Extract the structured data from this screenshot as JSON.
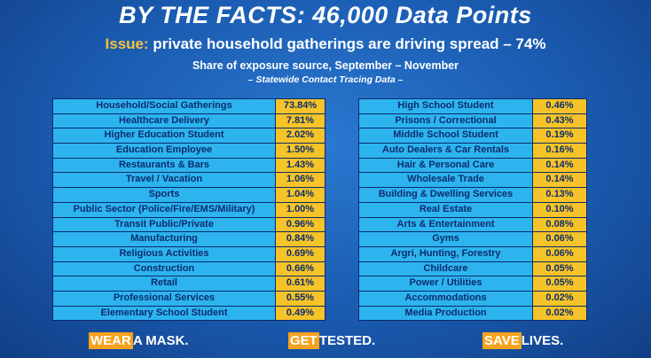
{
  "header": {
    "title": "BY THE FACTS: 46,000 Data Points",
    "issue_label": "Issue:",
    "issue_text": "private household gatherings are driving spread – 74%",
    "subtitle": "Share of exposure source, September – November",
    "note": "– Statewide Contact Tracing Data –"
  },
  "tables": [
    {
      "rows": [
        [
          "Household/Social Gatherings",
          "73.84%"
        ],
        [
          "Healthcare Delivery",
          "7.81%"
        ],
        [
          "Higher Education Student",
          "2.02%"
        ],
        [
          "Education Employee",
          "1.50%"
        ],
        [
          "Restaurants & Bars",
          "1.43%"
        ],
        [
          "Travel / Vacation",
          "1.06%"
        ],
        [
          "Sports",
          "1.04%"
        ],
        [
          "Public Sector (Police/Fire/EMS/Military)",
          "1.00%"
        ],
        [
          "Transit Public/Private",
          "0.96%"
        ],
        [
          "Manufacturing",
          "0.84%"
        ],
        [
          "Religious Activities",
          "0.69%"
        ],
        [
          "Construction",
          "0.66%"
        ],
        [
          "Retail",
          "0.61%"
        ],
        [
          "Professional Services",
          "0.55%"
        ],
        [
          "Elementary School Student",
          "0.49%"
        ]
      ]
    },
    {
      "rows": [
        [
          "High School Student",
          "0.46%"
        ],
        [
          "Prisons / Correctional",
          "0.43%"
        ],
        [
          "Middle School Student",
          "0.19%"
        ],
        [
          "Auto Dealers & Car Rentals",
          "0.16%"
        ],
        [
          "Hair & Personal Care",
          "0.14%"
        ],
        [
          "Wholesale Trade",
          "0.14%"
        ],
        [
          "Building & Dwelling Services",
          "0.13%"
        ],
        [
          "Real Estate",
          "0.10%"
        ],
        [
          "Arts & Entertainment",
          "0.08%"
        ],
        [
          "Gyms",
          "0.06%"
        ],
        [
          "Argri, Hunting, Forestry",
          "0.06%"
        ],
        [
          "Childcare",
          "0.05%"
        ],
        [
          "Power / Utilities",
          "0.05%"
        ],
        [
          "Accommodations",
          "0.02%"
        ],
        [
          "Media Production",
          "0.02%"
        ]
      ]
    }
  ],
  "footer": [
    {
      "highlight": "WEAR",
      "text": "A MASK."
    },
    {
      "highlight": "GET",
      "text": "TESTED."
    },
    {
      "highlight": "SAVE",
      "text": "LIVES."
    }
  ]
}
